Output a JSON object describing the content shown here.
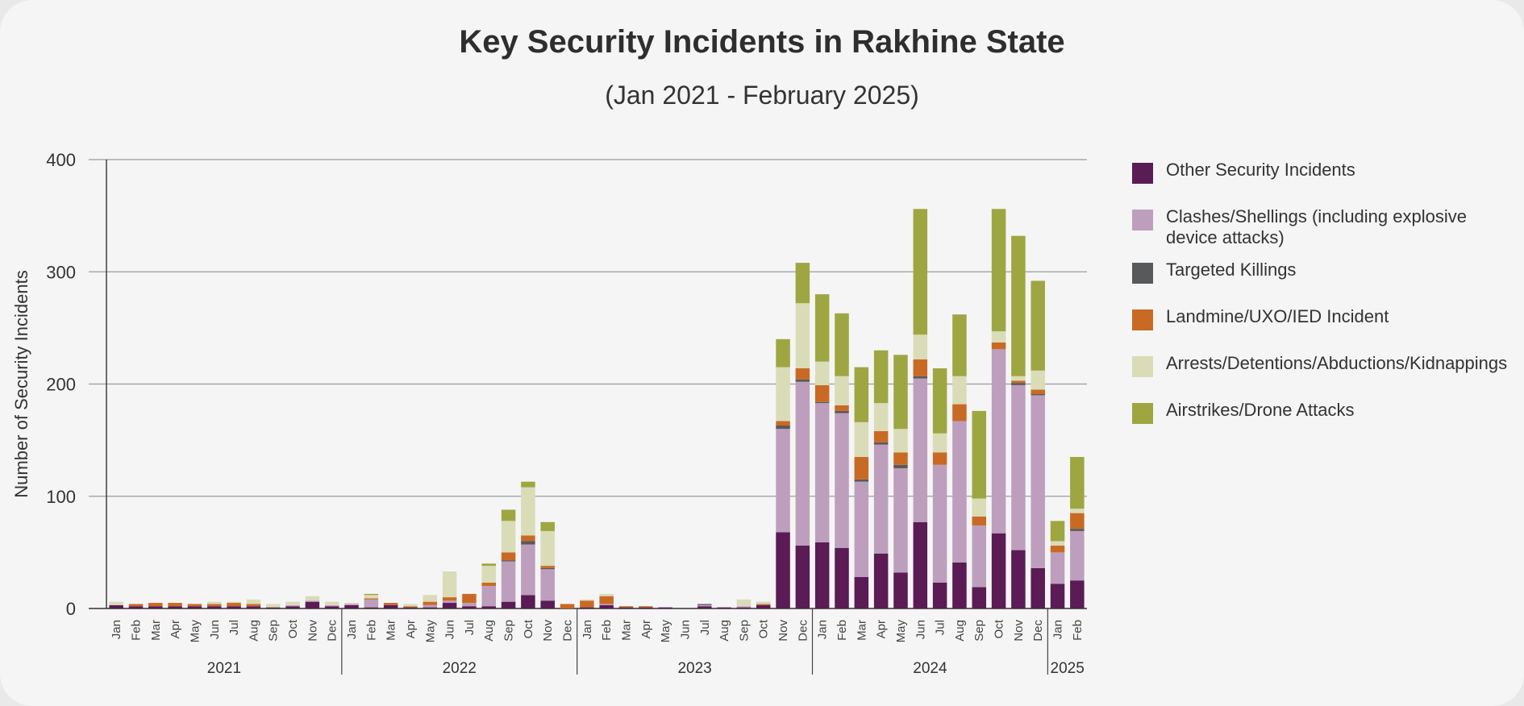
{
  "chart_data": {
    "type": "bar",
    "stacked": true,
    "title": "Key Security Incidents in Rakhine State",
    "subtitle": "(Jan 2021 - February 2025)",
    "ylabel": "Number of Security Incidents",
    "xlabel": "",
    "ylim": [
      0,
      400
    ],
    "yticks": [
      0,
      100,
      200,
      300,
      400
    ],
    "grid": true,
    "legend_position": "right",
    "categories": [
      "Jan",
      "Feb",
      "Mar",
      "Apr",
      "May",
      "Jun",
      "Jul",
      "Aug",
      "Sep",
      "Oct",
      "Nov",
      "Dec",
      "Jan",
      "Feb",
      "Mar",
      "Apr",
      "May",
      "Jun",
      "Jul",
      "Aug",
      "Sep",
      "Oct",
      "Nov",
      "Dec",
      "Jan",
      "Feb",
      "Mar",
      "Apr",
      "May",
      "Jun",
      "Jul",
      "Aug",
      "Sep",
      "Oct",
      "Nov",
      "Dec",
      "Jan",
      "Feb",
      "Mar",
      "Apr",
      "May",
      "Jun",
      "Jul",
      "Aug",
      "Sep",
      "Oct",
      "Nov",
      "Dec",
      "Jan",
      "Feb"
    ],
    "year_groups": [
      {
        "label": "2021",
        "start": 0,
        "count": 12
      },
      {
        "label": "2022",
        "start": 12,
        "count": 12
      },
      {
        "label": "2023",
        "start": 24,
        "count": 12
      },
      {
        "label": "2024",
        "start": 36,
        "count": 12
      },
      {
        "label": "2025",
        "start": 48,
        "count": 2
      }
    ],
    "series": [
      {
        "name": "Other Security Incidents",
        "color": "#5b1b55",
        "values": [
          3,
          2,
          2,
          2,
          2,
          2,
          2,
          2,
          1,
          2,
          6,
          2,
          3,
          1,
          3,
          1,
          1,
          5,
          2,
          2,
          6,
          12,
          7,
          0,
          1,
          3,
          1,
          1,
          1,
          0,
          2,
          1,
          1,
          3,
          68,
          56,
          59,
          54,
          28,
          49,
          32,
          77,
          23,
          41,
          19,
          67,
          52,
          36,
          22,
          25
        ]
      },
      {
        "name": "Clashes/Shellings (including explosive device attacks)",
        "color": "#bd9fbd",
        "values": [
          0,
          0,
          0,
          0,
          0,
          0,
          0,
          0,
          0,
          1,
          1,
          1,
          1,
          7,
          0,
          0,
          2,
          2,
          3,
          18,
          36,
          45,
          28,
          0,
          0,
          1,
          0,
          0,
          0,
          0,
          1,
          0,
          1,
          0,
          92,
          146,
          124,
          120,
          85,
          97,
          93,
          128,
          105,
          126,
          55,
          164,
          147,
          154,
          28,
          44
        ]
      },
      {
        "name": "Targeted Killings",
        "color": "#58595b",
        "values": [
          0,
          0,
          0,
          0,
          0,
          0,
          0,
          0,
          0,
          0,
          0,
          0,
          0,
          0,
          0,
          0,
          0,
          0,
          0,
          0,
          1,
          3,
          1,
          0,
          0,
          0,
          0,
          0,
          0,
          0,
          1,
          0,
          0,
          0,
          3,
          2,
          1,
          2,
          2,
          2,
          3,
          2,
          0,
          0,
          0,
          0,
          2,
          1,
          0,
          2
        ]
      },
      {
        "name": "Landmine/UXO/IED Incident",
        "color": "#c96a24",
        "values": [
          0,
          2,
          3,
          3,
          2,
          2,
          3,
          2,
          0,
          0,
          0,
          0,
          0,
          1,
          2,
          1,
          3,
          3,
          8,
          3,
          7,
          5,
          2,
          4,
          6,
          7,
          1,
          1,
          0,
          0,
          0,
          0,
          0,
          1,
          4,
          10,
          15,
          5,
          20,
          10,
          11,
          15,
          11,
          15,
          8,
          6,
          2,
          4,
          6,
          14
        ]
      },
      {
        "name": "Arrests/Detentions/Abductions/Kidnappings",
        "color": "#d9dcb6",
        "values": [
          3,
          0,
          0,
          0,
          0,
          2,
          1,
          4,
          3,
          3,
          4,
          3,
          1,
          3,
          0,
          2,
          6,
          23,
          0,
          15,
          28,
          43,
          31,
          0,
          1,
          2,
          0,
          0,
          0,
          0,
          0,
          0,
          6,
          2,
          48,
          58,
          21,
          26,
          31,
          25,
          21,
          22,
          17,
          25,
          16,
          10,
          4,
          17,
          4,
          4
        ]
      },
      {
        "name": "Airstrikes/Drone Attacks",
        "color": "#9ea641",
        "values": [
          0,
          0,
          0,
          0,
          0,
          0,
          0,
          0,
          0,
          0,
          0,
          0,
          0,
          1,
          0,
          0,
          0,
          0,
          0,
          2,
          10,
          5,
          8,
          0,
          0,
          0,
          0,
          0,
          0,
          0,
          0,
          0,
          0,
          0,
          25,
          36,
          60,
          56,
          49,
          47,
          66,
          112,
          58,
          55,
          78,
          109,
          125,
          80,
          18,
          46
        ]
      }
    ]
  }
}
